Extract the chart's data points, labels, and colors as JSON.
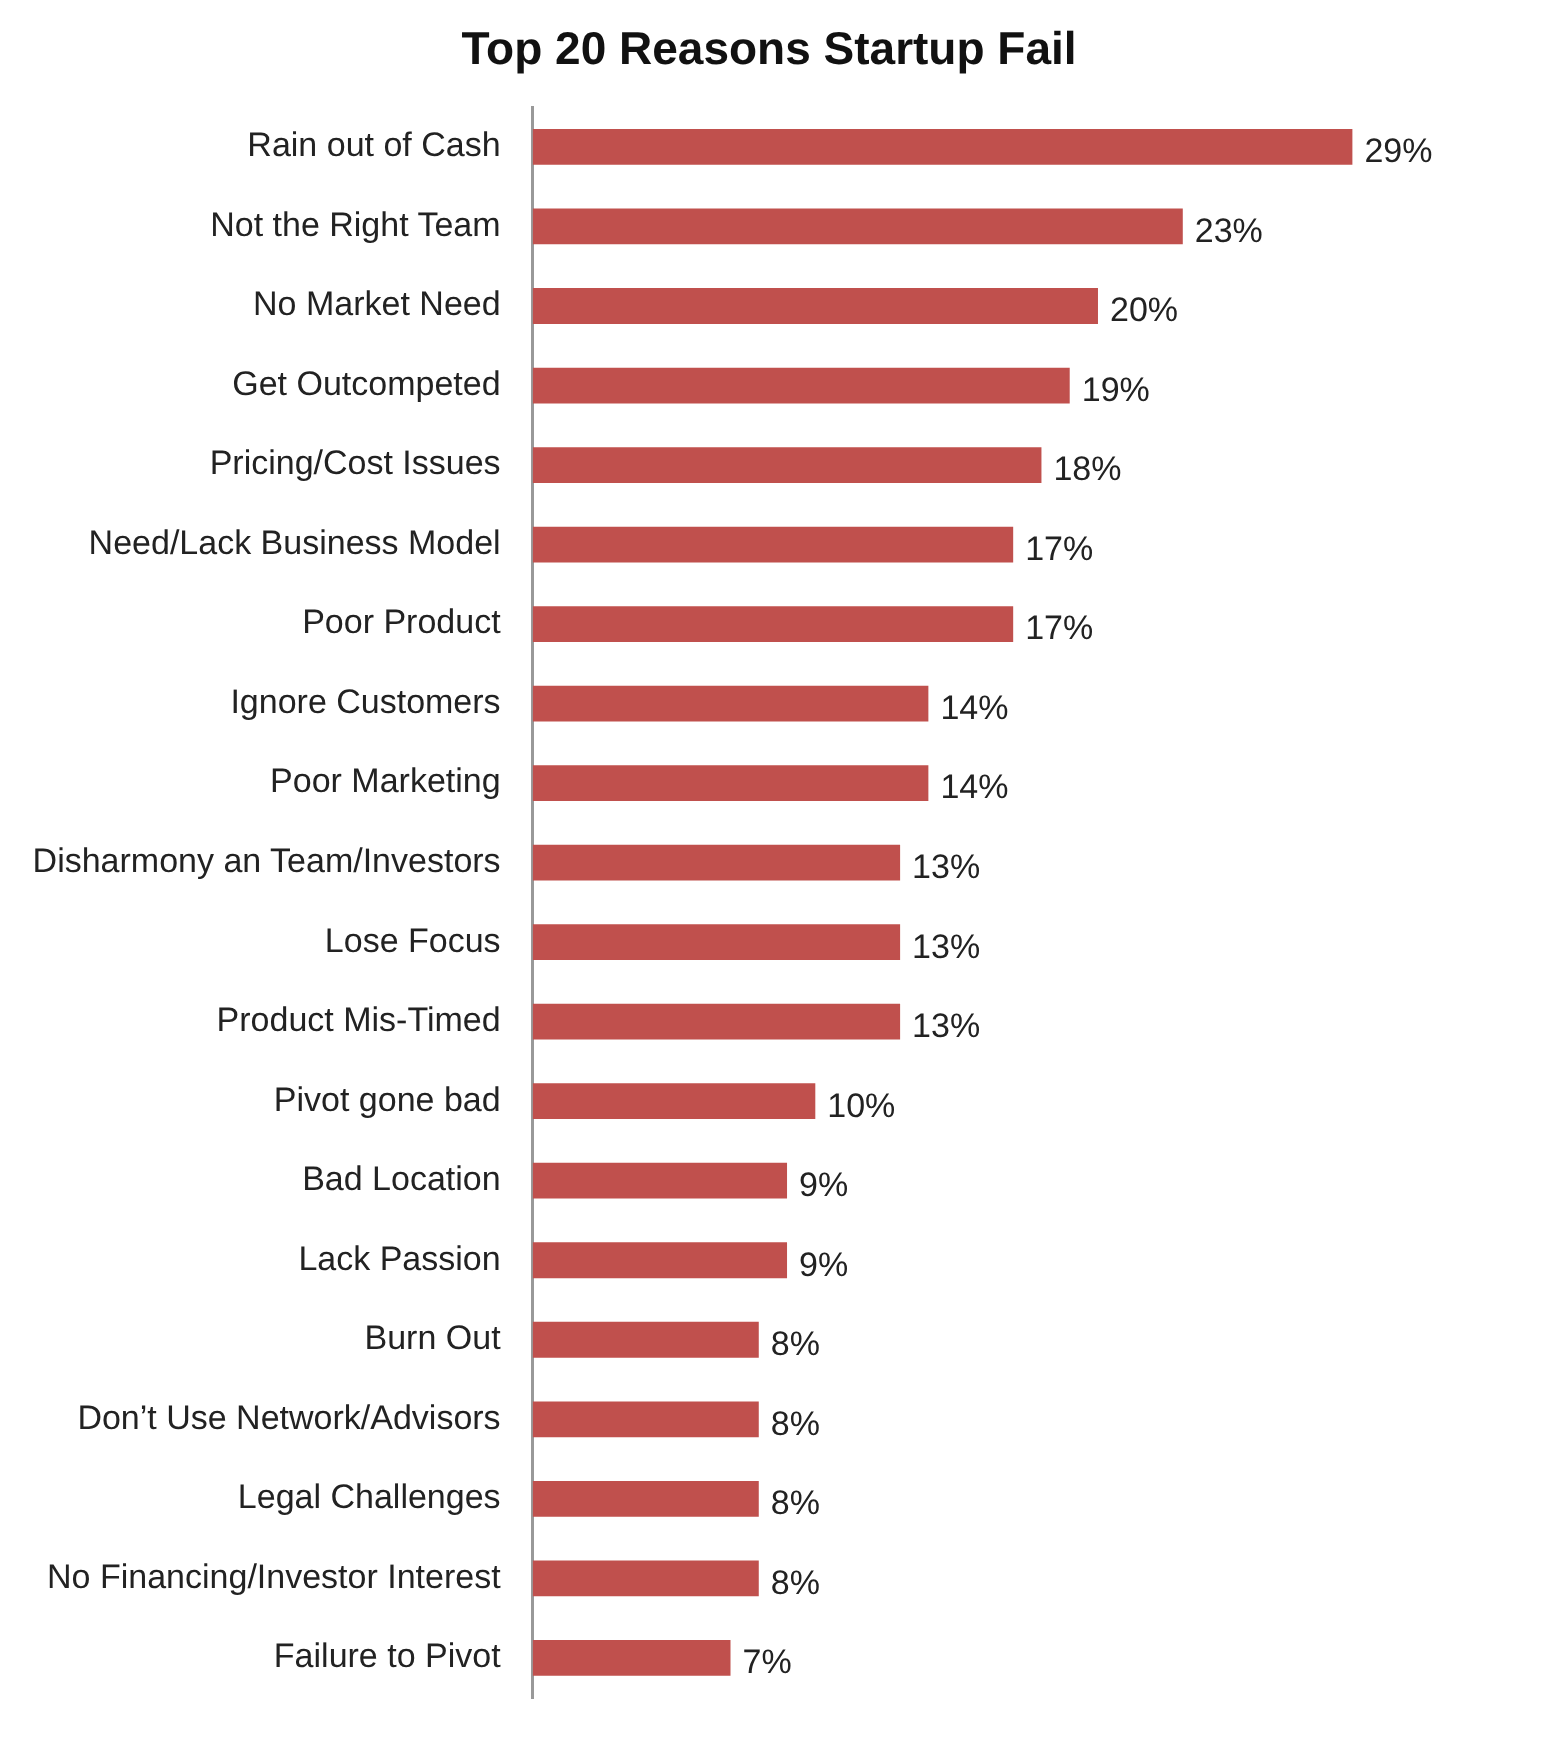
{
  "chart_data": {
    "type": "bar",
    "orientation": "horizontal",
    "title": "Top 20 Reasons Startup Fail",
    "categories": [
      "Rain out of Cash",
      "Not the Right Team",
      "No Market Need",
      "Get Outcompeted",
      "Pricing/Cost Issues",
      "Need/Lack Business Model",
      "Poor Product",
      "Ignore Customers",
      "Poor Marketing",
      "Disharmony an Team/Investors",
      "Lose Focus",
      "Product Mis-Timed",
      "Pivot gone bad",
      "Bad Location",
      "Lack Passion",
      "Burn Out",
      "Don’t Use Network/Advisors",
      "Legal Challenges",
      "No Financing/Investor Interest",
      "Failure to Pivot"
    ],
    "values": [
      29,
      23,
      20,
      19,
      18,
      17,
      17,
      14,
      14,
      13,
      13,
      13,
      10,
      9,
      9,
      8,
      8,
      8,
      8,
      7
    ],
    "value_labels": [
      "29%",
      "23%",
      "20%",
      "19%",
      "18%",
      "17%",
      "17%",
      "14%",
      "14%",
      "13%",
      "13%",
      "13%",
      "10%",
      "9%",
      "9%",
      "8%",
      "8%",
      "8%",
      "8%",
      "7%"
    ],
    "color": "#c0504d"
  }
}
